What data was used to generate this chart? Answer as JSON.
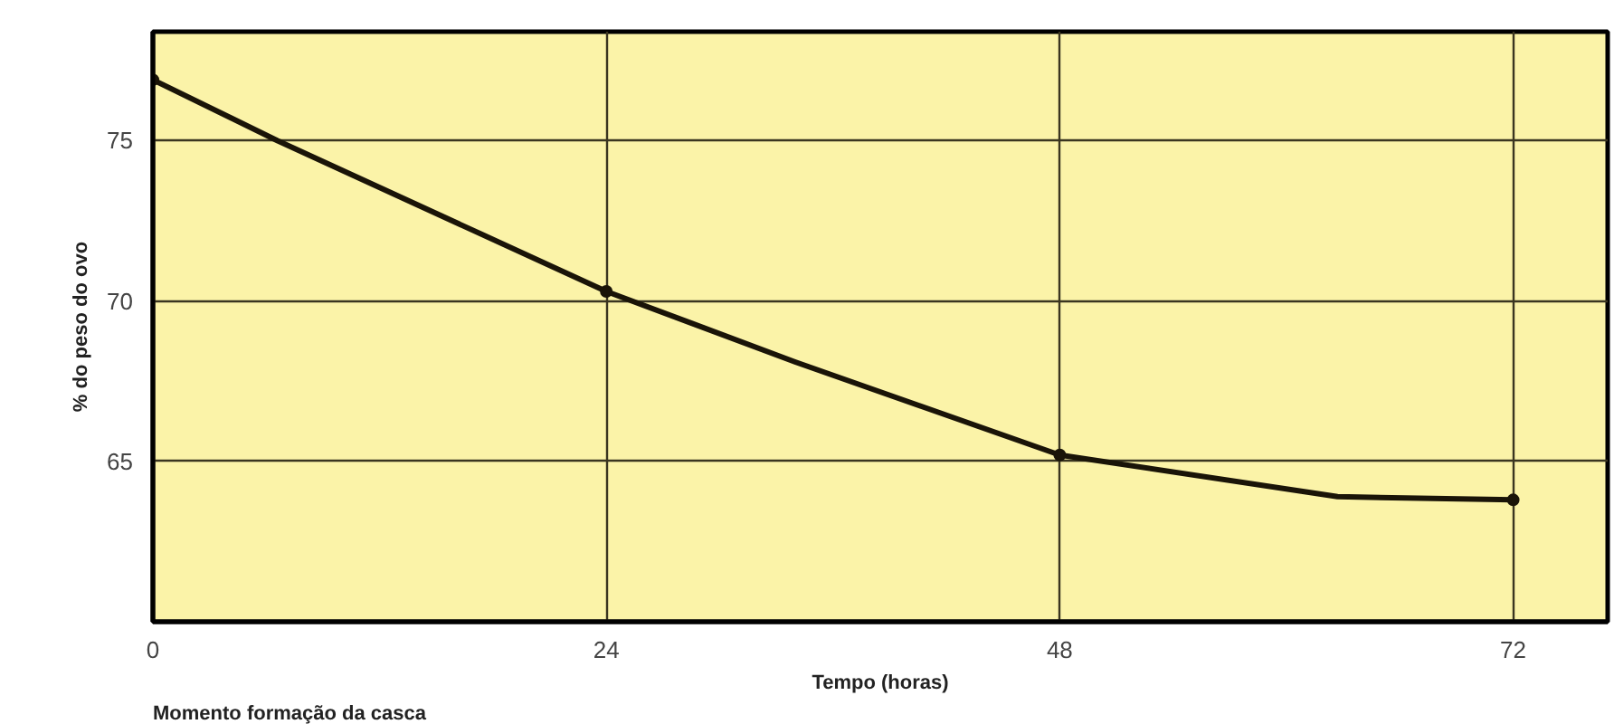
{
  "chart_data": {
    "type": "line",
    "xlabel": "Tempo (horas)",
    "ylabel": "% do peso do ovo",
    "annotations": [
      "Momento formação da casca"
    ],
    "xlim": [
      0,
      77
    ],
    "xticks": [
      0,
      24,
      48,
      72
    ],
    "ylim": [
      60,
      78.4
    ],
    "yticks": [
      65,
      70,
      75
    ],
    "grid": true,
    "line_style": "solid",
    "series": [
      {
        "color": "#1a1408",
        "x": [
          0,
          6.6,
          24,
          34,
          48,
          62.7,
          72
        ],
        "values": [
          76.9,
          75.0,
          70.3,
          68.1,
          65.2,
          63.9,
          63.8
        ],
        "marker": "none"
      },
      {
        "type": "scatter",
        "color": "#1a1408",
        "x": [
          0,
          24,
          48,
          72
        ],
        "values": [
          76.9,
          70.3,
          65.2,
          63.8
        ],
        "marker": "circle"
      }
    ]
  }
}
